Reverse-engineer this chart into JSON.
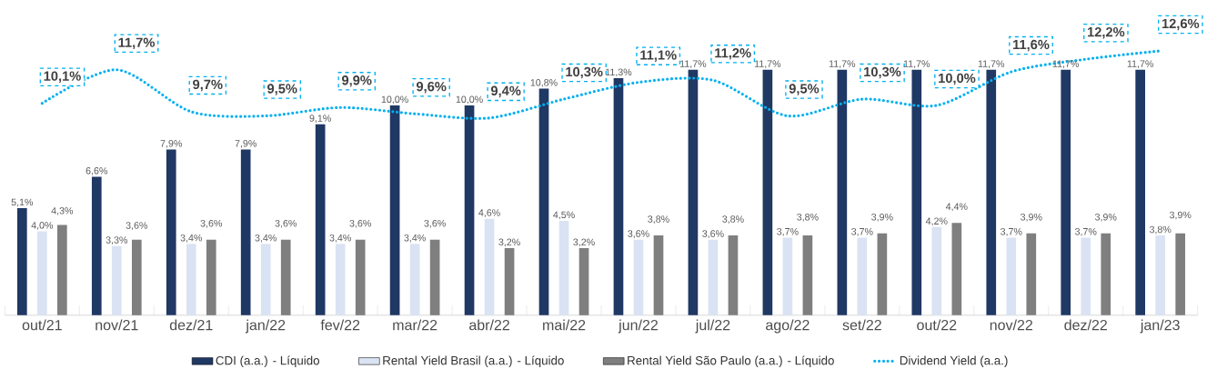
{
  "chart_data": {
    "type": "bar",
    "categories": [
      "out/21",
      "nov/21",
      "dez/21",
      "jan/22",
      "fev/22",
      "mar/22",
      "abr/22",
      "mai/22",
      "jun/22",
      "jul/22",
      "ago/22",
      "set/22",
      "out/22",
      "nov/22",
      "dez/22",
      "jan/23"
    ],
    "ylim": [
      0,
      13
    ],
    "legend": "bottom",
    "series": [
      {
        "name": "CDI (a.a.) - Líquido",
        "color": "#1f3864",
        "values": [
          5.1,
          6.6,
          7.9,
          7.9,
          9.1,
          10.0,
          10.0,
          10.8,
          11.3,
          11.7,
          11.7,
          11.7,
          11.7,
          11.7,
          11.7,
          11.7
        ],
        "value_labels": [
          "5,1%",
          "6,6%",
          "7,9%",
          "7,9%",
          "9,1%",
          "10,0%",
          "10,0%",
          "10,8%",
          "11,3%",
          "11,7%",
          "11,7%",
          "11,7%",
          "11,7%",
          "11,7%",
          "11,7%",
          "11,7%"
        ]
      },
      {
        "name": "Rental Yield Brasil (a.a.) - Líquido",
        "color": "#dae3f3",
        "values": [
          4.0,
          3.3,
          3.4,
          3.4,
          3.4,
          3.4,
          4.6,
          4.5,
          3.6,
          3.6,
          3.7,
          3.7,
          4.2,
          3.7,
          3.7,
          3.8
        ],
        "value_labels": [
          "4,0%",
          "3,3%",
          "3,4%",
          "3,4%",
          "3,4%",
          "3,4%",
          "4,6%",
          "4,5%",
          "3,6%",
          "3,6%",
          "3,7%",
          "3,7%",
          "4,2%",
          "3,7%",
          "3,7%",
          "3,8%"
        ]
      },
      {
        "name": "Rental Yield São Paulo (a.a.) - Líquido",
        "color": "#7f7f7f",
        "values": [
          4.3,
          3.6,
          3.6,
          3.6,
          3.6,
          3.6,
          3.2,
          3.2,
          3.8,
          3.8,
          3.8,
          3.9,
          4.4,
          3.9,
          3.9,
          3.9
        ],
        "value_labels": [
          "4,3%",
          "3,6%",
          "3,6%",
          "3,6%",
          "3,6%",
          "3,6%",
          "3,2%",
          "3,2%",
          "3,8%",
          "3,8%",
          "3,8%",
          "3,9%",
          "4,4%",
          "3,9%",
          "3,9%",
          "3,9%"
        ]
      },
      {
        "name": "Dividend Yield (a.a.)",
        "type": "line",
        "line_style": "dotted",
        "color": "#00b0f0",
        "values": [
          10.1,
          11.7,
          9.7,
          9.5,
          9.9,
          9.6,
          9.4,
          10.3,
          11.1,
          11.2,
          9.5,
          10.3,
          10.0,
          11.6,
          12.2,
          12.6
        ],
        "value_labels": [
          "10,1%",
          "11,7%",
          "9,7%",
          "9,5%",
          "9,9%",
          "9,6%",
          "9,4%",
          "10,3%",
          "11,1%",
          "11,2%",
          "9,5%",
          "10,3%",
          "10,0%",
          "11,6%",
          "12,2%",
          "12,6%"
        ]
      }
    ]
  }
}
